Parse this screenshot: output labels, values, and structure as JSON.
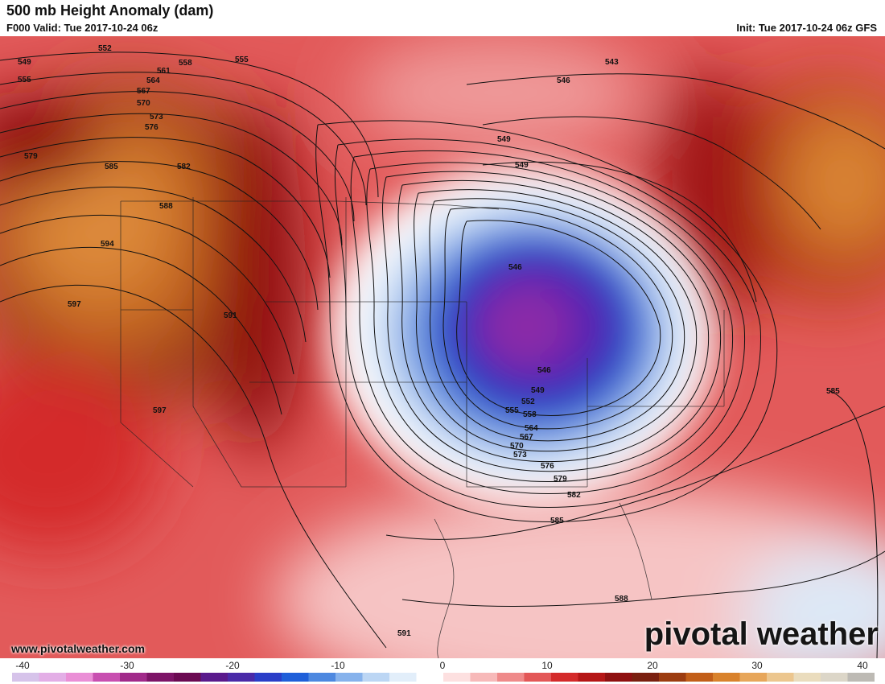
{
  "header": {
    "title": "500 mb Height Anomaly (dam)",
    "valid": "F000 Valid: Tue 2017-10-24 06z",
    "init": "Init: Tue 2017-10-24 06z GFS"
  },
  "footer": {
    "website": "www.pivotalweather.com",
    "brand": "pivotal weather"
  },
  "legend": {
    "ticks": [
      "-40",
      "-30",
      "-20",
      "-10",
      "0",
      "10",
      "20",
      "30",
      "40"
    ],
    "colors": [
      "#d6c3ea",
      "#e3aee6",
      "#ea8fd6",
      "#c84fb0",
      "#a12a8a",
      "#7d1467",
      "#6b0a52",
      "#5a1a8c",
      "#4a2aa8",
      "#2a3ec8",
      "#1f5fd9",
      "#4d88e0",
      "#86b2ec",
      "#bcd6f4",
      "#e2eefa",
      "#ffffff",
      "#fde0e0",
      "#f7b9b9",
      "#ef8a8a",
      "#e35757",
      "#d42a2a",
      "#b51616",
      "#8f1010",
      "#7a1f0f",
      "#9c3c10",
      "#c25e18",
      "#d9822c",
      "#e7a65a",
      "#ecc68e",
      "#eadcbd",
      "#dcd6c8",
      "#bdbab4"
    ]
  },
  "contours": {
    "labels": [
      "549",
      "552",
      "555",
      "558",
      "561",
      "564",
      "567",
      "570",
      "573",
      "576",
      "579",
      "582",
      "585",
      "588",
      "591",
      "594",
      "597",
      "543",
      "546"
    ]
  }
}
